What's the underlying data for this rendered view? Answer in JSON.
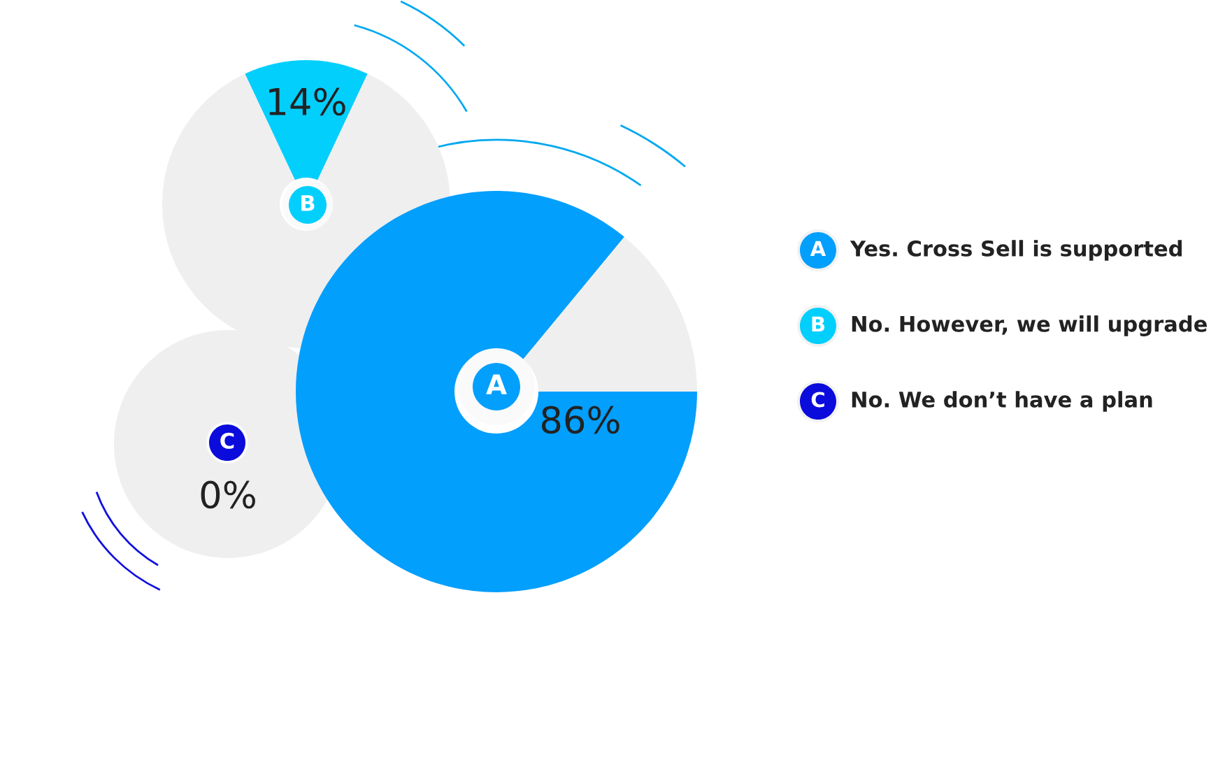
{
  "chart_data": [
    {
      "type": "donut",
      "categories": [
        "No. However, we will upgrade",
        null
      ],
      "values": [
        14,
        86
      ],
      "value_labels": [
        "14%",
        null
      ],
      "colors": [
        "#03cffd",
        "#efefef"
      ],
      "annotations": [
        "B"
      ],
      "legend": "right"
    },
    {
      "type": "donut",
      "categories": [
        "Yes. Cross Sell is supported",
        null
      ],
      "values": [
        86,
        14
      ],
      "value_labels": [
        "86%",
        null
      ],
      "colors": [
        "#039ffd",
        "#efefef"
      ],
      "annotations": [
        "A"
      ],
      "legend": "right"
    },
    {
      "type": "pie",
      "categories": [
        "No. We don’t have a plan",
        null
      ],
      "values": [
        0,
        100
      ],
      "value_labels": [
        "0%",
        null
      ],
      "colors": [
        "#0b0bdc",
        "#efefef"
      ],
      "annotations": [
        "C"
      ],
      "legend": "right"
    }
  ]
}
